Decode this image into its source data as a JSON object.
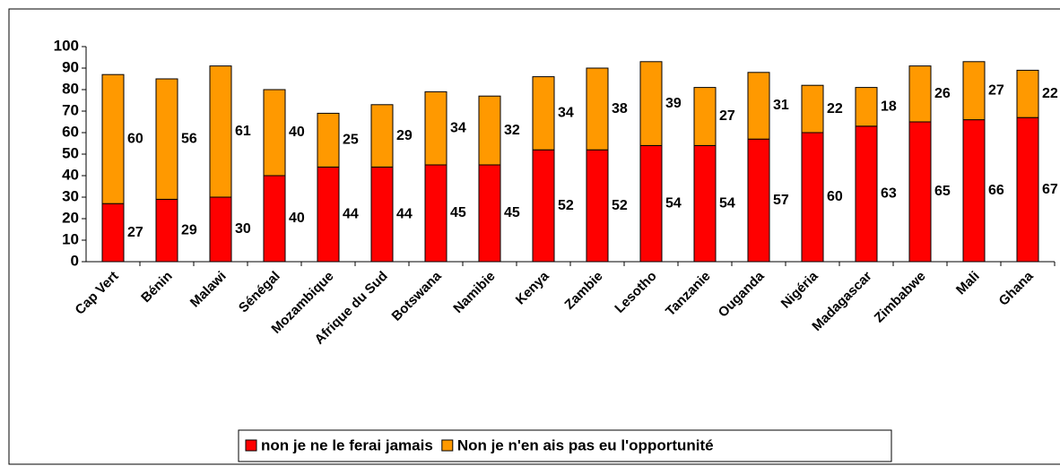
{
  "chart_data": {
    "type": "bar",
    "stacked": true,
    "categories": [
      "Cap Vert",
      "Bénin",
      "Malawi",
      "Sénégal",
      "Mozambique",
      "Afrique du Sud",
      "Botswana",
      "Namibie",
      "Kenya",
      "Zambie",
      "Lesotho",
      "Tanzanie",
      "Ouganda",
      "Nigéria",
      "Madagascar",
      "Zimbabwe",
      "Mali",
      "Ghana"
    ],
    "series": [
      {
        "name": "non je ne le ferai jamais",
        "color": "#ff0000",
        "values": [
          27,
          29,
          30,
          40,
          44,
          44,
          45,
          45,
          52,
          52,
          54,
          54,
          57,
          60,
          63,
          65,
          66,
          67
        ]
      },
      {
        "name": "Non je n'en ais pas eu l'opportunité",
        "color": "#ff9900",
        "values": [
          60,
          56,
          61,
          40,
          25,
          29,
          34,
          32,
          34,
          38,
          39,
          27,
          31,
          22,
          18,
          26,
          27,
          22
        ]
      }
    ],
    "ylim": [
      0,
      100
    ],
    "yticks": [
      0,
      10,
      20,
      30,
      40,
      50,
      60,
      70,
      80,
      90,
      100
    ],
    "grid": false,
    "legend": "bottom"
  }
}
